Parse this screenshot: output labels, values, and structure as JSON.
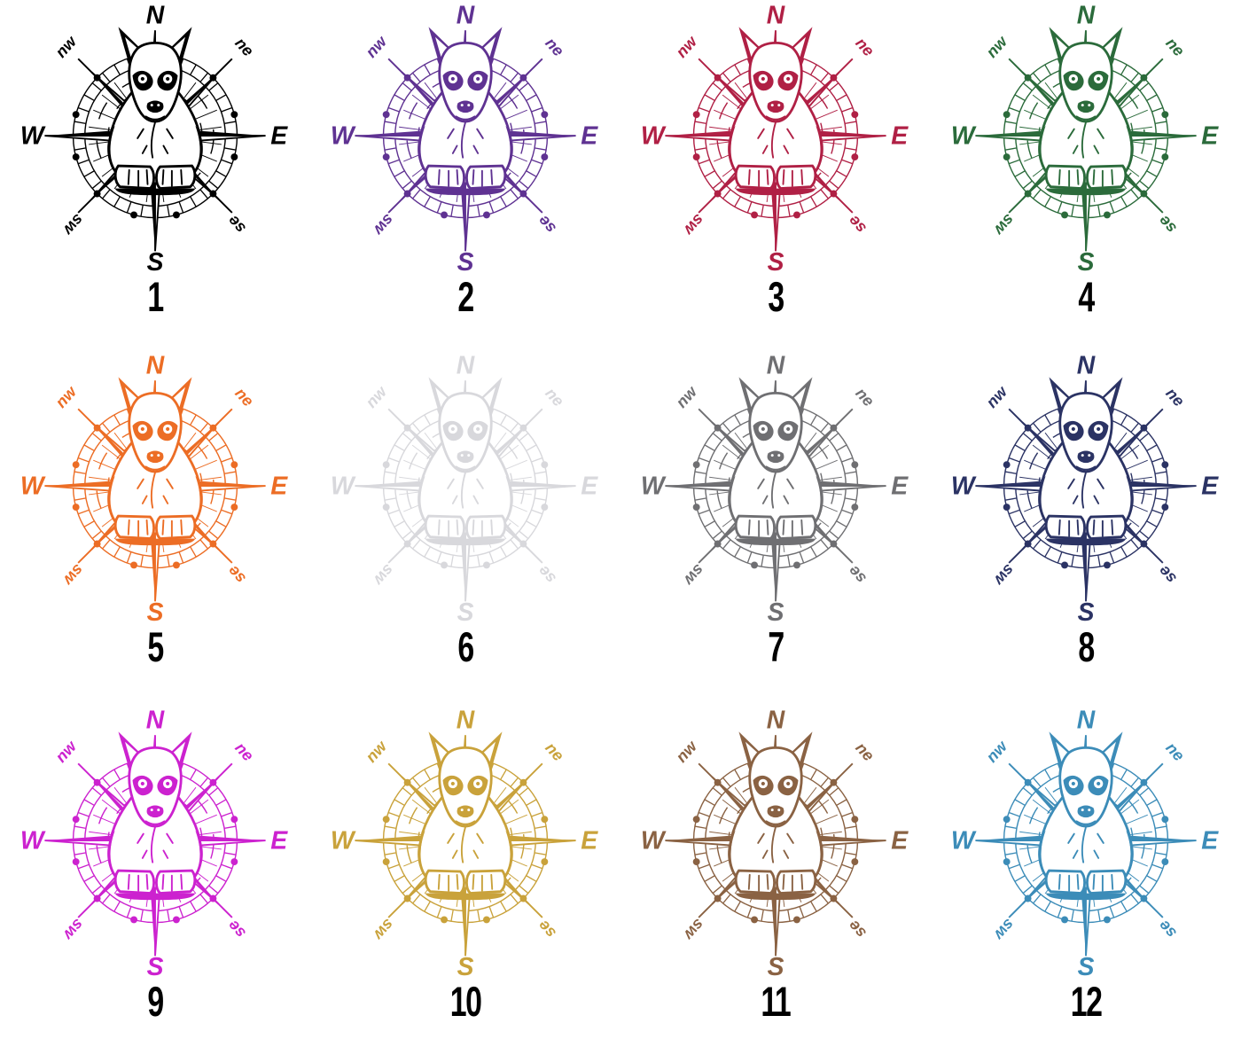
{
  "page": {
    "background": "#ffffff",
    "number_color": "#000000"
  },
  "compass_labels": {
    "north": "N",
    "east": "E",
    "south": "S",
    "west": "W",
    "northwest": "nw",
    "northeast": "ne",
    "southwest": "sw",
    "southeast": "se"
  },
  "variants": [
    {
      "number": "1",
      "color": "#000000"
    },
    {
      "number": "2",
      "color": "#5F3292"
    },
    {
      "number": "3",
      "color": "#B02045"
    },
    {
      "number": "4",
      "color": "#2B6B3B"
    },
    {
      "number": "5",
      "color": "#EC6D25"
    },
    {
      "number": "6",
      "color": "#D8D8DC"
    },
    {
      "number": "7",
      "color": "#6F6F72"
    },
    {
      "number": "8",
      "color": "#2B3364"
    },
    {
      "number": "9",
      "color": "#CC22CF"
    },
    {
      "number": "10",
      "color": "#C9A23B"
    },
    {
      "number": "11",
      "color": "#8A6243"
    },
    {
      "number": "12",
      "color": "#3C8CB8"
    }
  ]
}
